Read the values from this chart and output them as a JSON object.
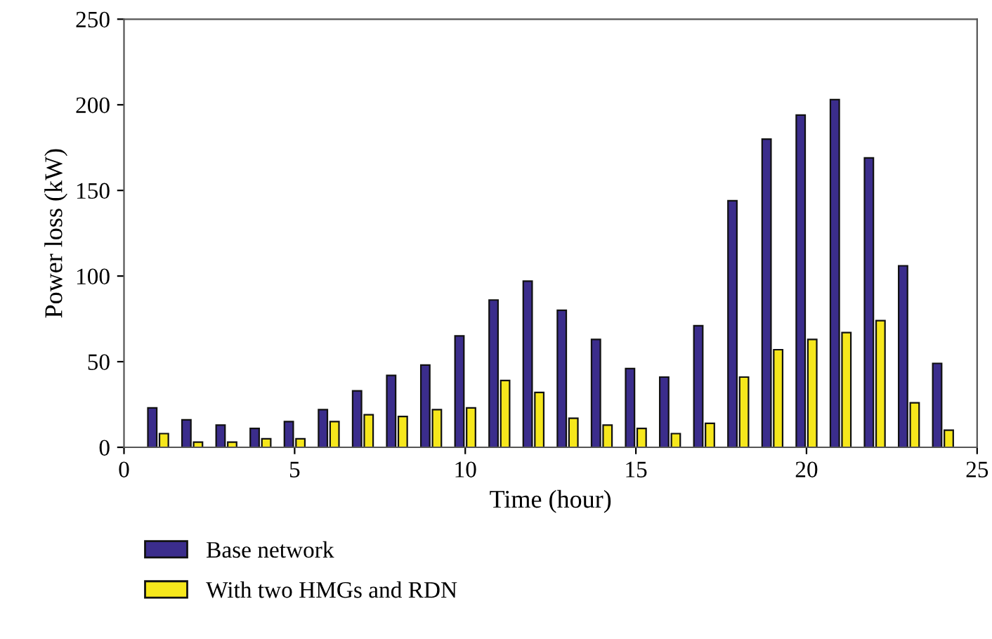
{
  "chart_data": {
    "type": "bar",
    "xlabel": "Time (hour)",
    "ylabel": "Power loss (kW)",
    "x": [
      1,
      2,
      3,
      4,
      5,
      6,
      7,
      8,
      9,
      10,
      11,
      12,
      13,
      14,
      15,
      16,
      17,
      18,
      19,
      20,
      21,
      22,
      23,
      24
    ],
    "series": [
      {
        "name": "Base network",
        "color": "#3b2d8c",
        "values": [
          23,
          16,
          13,
          11,
          15,
          22,
          33,
          42,
          48,
          65,
          86,
          97,
          80,
          63,
          46,
          41,
          71,
          144,
          180,
          194,
          203,
          169,
          106,
          49
        ]
      },
      {
        "name": "With two HMGs and RDN",
        "color": "#f6e71c",
        "values": [
          8,
          3,
          3,
          5,
          5,
          15,
          19,
          18,
          22,
          23,
          39,
          32,
          17,
          13,
          11,
          8,
          14,
          41,
          57,
          63,
          67,
          74,
          26,
          10
        ]
      }
    ],
    "xlim": [
      0,
      25
    ],
    "xticks": [
      0,
      5,
      10,
      15,
      20,
      25
    ],
    "ylim": [
      0,
      250
    ],
    "yticks": [
      0,
      50,
      100,
      150,
      200,
      250
    ],
    "grid": false,
    "legend": "bottom left"
  }
}
